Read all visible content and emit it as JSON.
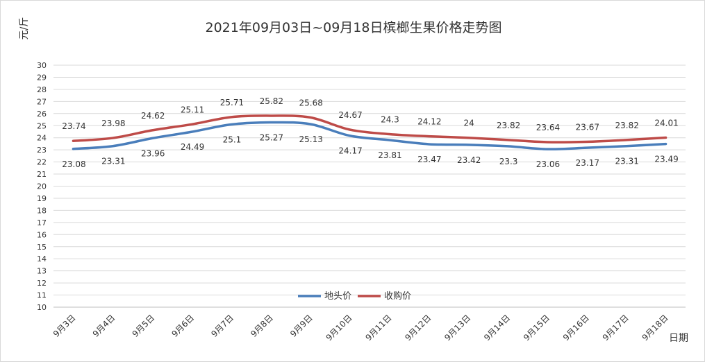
{
  "chart_data": {
    "type": "line",
    "title": "2021年09月03日~09月18日槟榔生果价格走势图",
    "ylabel": "元/斤",
    "xlabel": "日期",
    "ylim": [
      10,
      30
    ],
    "yticks": [
      "10",
      "11",
      "12",
      "13",
      "14",
      "15",
      "16",
      "17",
      "18",
      "19",
      "20",
      "21",
      "22",
      "23",
      "24",
      "25",
      "26",
      "27",
      "28",
      "29",
      "30"
    ],
    "categories": [
      "9月3日",
      "9月4日",
      "9月5日",
      "9月6日",
      "9月7日",
      "9月8日",
      "9月9日",
      "9月10日",
      "9月11日",
      "9月12日",
      "9月13日",
      "9月14日",
      "9月15日",
      "9月16日",
      "9月17日",
      "9月18日"
    ],
    "grid": true,
    "legend_position": "inside-bottom-center",
    "series": [
      {
        "name": "地头价",
        "color": "#4a7ebb",
        "values": [
          23.08,
          23.31,
          23.96,
          24.49,
          25.1,
          25.27,
          25.13,
          24.17,
          23.81,
          23.47,
          23.42,
          23.3,
          23.06,
          23.17,
          23.31,
          23.49
        ],
        "labels": [
          "23.08",
          "23.31",
          "23.96",
          "24.49",
          "25.1",
          "25.27",
          "25.13",
          "24.17",
          "23.81",
          "23.47",
          "23.42",
          "23.3",
          "23.06",
          "23.17",
          "23.31",
          "23.49"
        ]
      },
      {
        "name": "收购价",
        "color": "#be4b48",
        "values": [
          23.74,
          23.98,
          24.62,
          25.11,
          25.71,
          25.82,
          25.68,
          24.67,
          24.3,
          24.12,
          24,
          23.82,
          23.64,
          23.67,
          23.82,
          24.01
        ],
        "labels": [
          "23.74",
          "23.98",
          "24.62",
          "25.11",
          "25.71",
          "25.82",
          "25.68",
          "24.67",
          "24.3",
          "24.12",
          "24",
          "23.82",
          "23.64",
          "23.67",
          "23.82",
          "24.01"
        ]
      }
    ]
  }
}
